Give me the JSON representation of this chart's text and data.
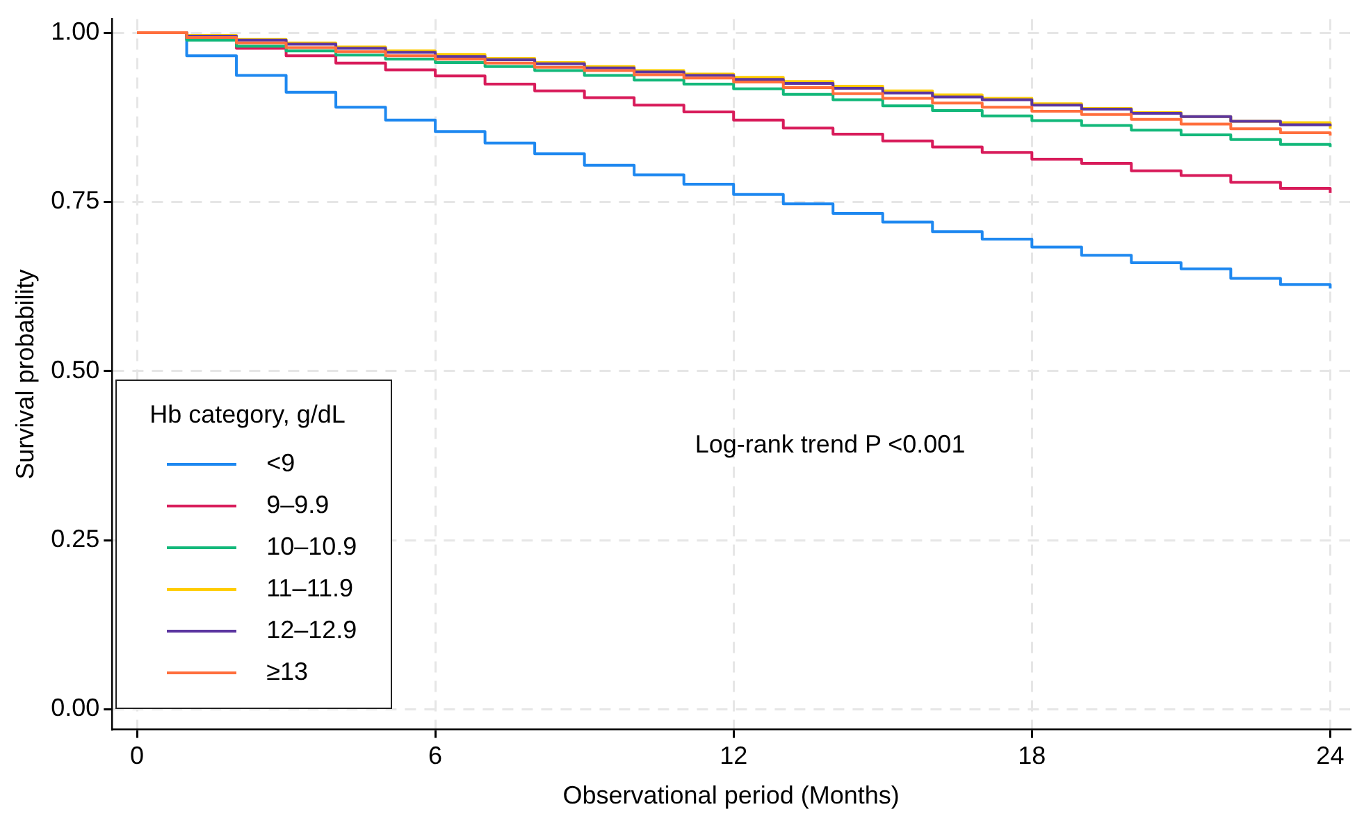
{
  "chart_data": {
    "type": "step",
    "xlabel": "Observational period (Months)",
    "ylabel": "Survival probability",
    "legend_title": "Hb category, g/dL",
    "x": [
      0,
      1,
      2,
      3,
      4,
      5,
      6,
      7,
      8,
      9,
      10,
      11,
      12,
      13,
      14,
      15,
      16,
      17,
      18,
      19,
      20,
      21,
      22,
      23,
      24
    ],
    "series": [
      {
        "name": "<9",
        "color": "#1e88f0",
        "values": [
          1,
          0.966,
          0.937,
          0.912,
          0.89,
          0.871,
          0.854,
          0.837,
          0.821,
          0.804,
          0.79,
          0.776,
          0.761,
          0.747,
          0.733,
          0.72,
          0.706,
          0.695,
          0.683,
          0.671,
          0.66,
          0.651,
          0.637,
          0.628,
          0.622
        ]
      },
      {
        "name": "9–9.9",
        "color": "#d81b5a",
        "values": [
          1,
          0.99,
          0.977,
          0.966,
          0.955,
          0.945,
          0.936,
          0.924,
          0.914,
          0.904,
          0.893,
          0.883,
          0.871,
          0.859,
          0.85,
          0.84,
          0.831,
          0.823,
          0.813,
          0.807,
          0.796,
          0.789,
          0.779,
          0.77,
          0.763
        ]
      },
      {
        "name": "10–10.9",
        "color": "#12b87a",
        "values": [
          1,
          0.989,
          0.98,
          0.973,
          0.967,
          0.961,
          0.956,
          0.95,
          0.944,
          0.937,
          0.93,
          0.924,
          0.917,
          0.909,
          0.901,
          0.892,
          0.885,
          0.877,
          0.87,
          0.863,
          0.856,
          0.849,
          0.842,
          0.835,
          0.831
        ]
      },
      {
        "name": "11–11.9",
        "color": "#ffcc00",
        "values": [
          1,
          0.996,
          0.99,
          0.985,
          0.979,
          0.973,
          0.968,
          0.962,
          0.956,
          0.95,
          0.944,
          0.939,
          0.934,
          0.928,
          0.921,
          0.914,
          0.908,
          0.903,
          0.895,
          0.888,
          0.882,
          0.876,
          0.869,
          0.867,
          0.858
        ]
      },
      {
        "name": "12–12.9",
        "color": "#5b35a0",
        "values": [
          1,
          0.995,
          0.989,
          0.983,
          0.977,
          0.971,
          0.965,
          0.96,
          0.954,
          0.948,
          0.942,
          0.937,
          0.931,
          0.925,
          0.918,
          0.911,
          0.905,
          0.901,
          0.893,
          0.887,
          0.881,
          0.876,
          0.869,
          0.864,
          0.862
        ]
      },
      {
        "name": "≥13",
        "color": "#ff6e3c",
        "values": [
          1,
          0.993,
          0.985,
          0.978,
          0.972,
          0.966,
          0.961,
          0.955,
          0.949,
          0.944,
          0.938,
          0.933,
          0.927,
          0.919,
          0.91,
          0.903,
          0.896,
          0.89,
          0.884,
          0.879,
          0.872,
          0.865,
          0.858,
          0.852,
          0.848
        ]
      }
    ],
    "xlim": [
      -0.5,
      24.4
    ],
    "xticks": [
      0,
      6,
      12,
      18,
      24
    ],
    "ylim": [
      -0.03,
      1.02
    ],
    "yticks": [
      {
        "value": 0,
        "label": "0.00"
      },
      {
        "value": 0.25,
        "label": "0.25"
      },
      {
        "value": 0.5,
        "label": "0.50"
      },
      {
        "value": 0.75,
        "label": "0.75"
      },
      {
        "value": 1,
        "label": "1.00"
      }
    ],
    "grid": true,
    "legend": "bottom left",
    "marker": "none",
    "line_style": "solid",
    "annotations": [
      "Log-rank trend P <0.001"
    ]
  }
}
